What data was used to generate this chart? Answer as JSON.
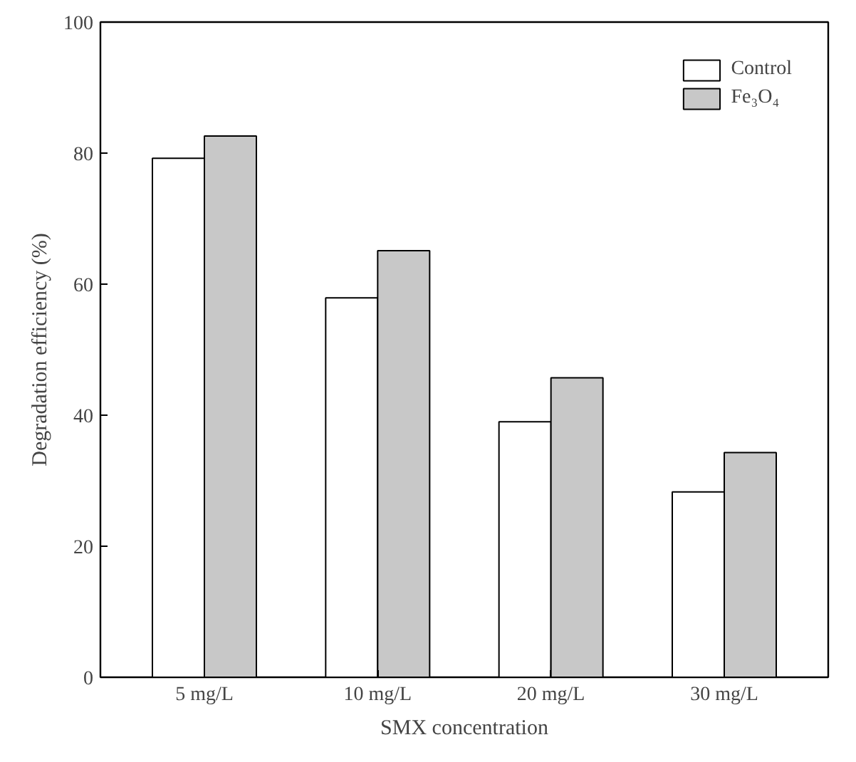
{
  "chart_data": {
    "type": "bar",
    "xlabel": "SMX concentration",
    "ylabel": "Degradation efficiency (%)",
    "categories": [
      "5 mg/L",
      "10 mg/L",
      "20 mg/L",
      "30 mg/L"
    ],
    "series": [
      {
        "name": "Control",
        "color": "#ffffff",
        "values": [
          79.2,
          57.9,
          39.0,
          28.3
        ]
      },
      {
        "name": "Fe₃O₄",
        "color": "#c8c8c8",
        "values": [
          82.6,
          65.1,
          45.7,
          34.3
        ]
      }
    ],
    "ylim": [
      0,
      100
    ],
    "yticks": [
      0,
      20,
      40,
      60,
      80,
      100
    ],
    "grid": false,
    "legend": "top right"
  }
}
